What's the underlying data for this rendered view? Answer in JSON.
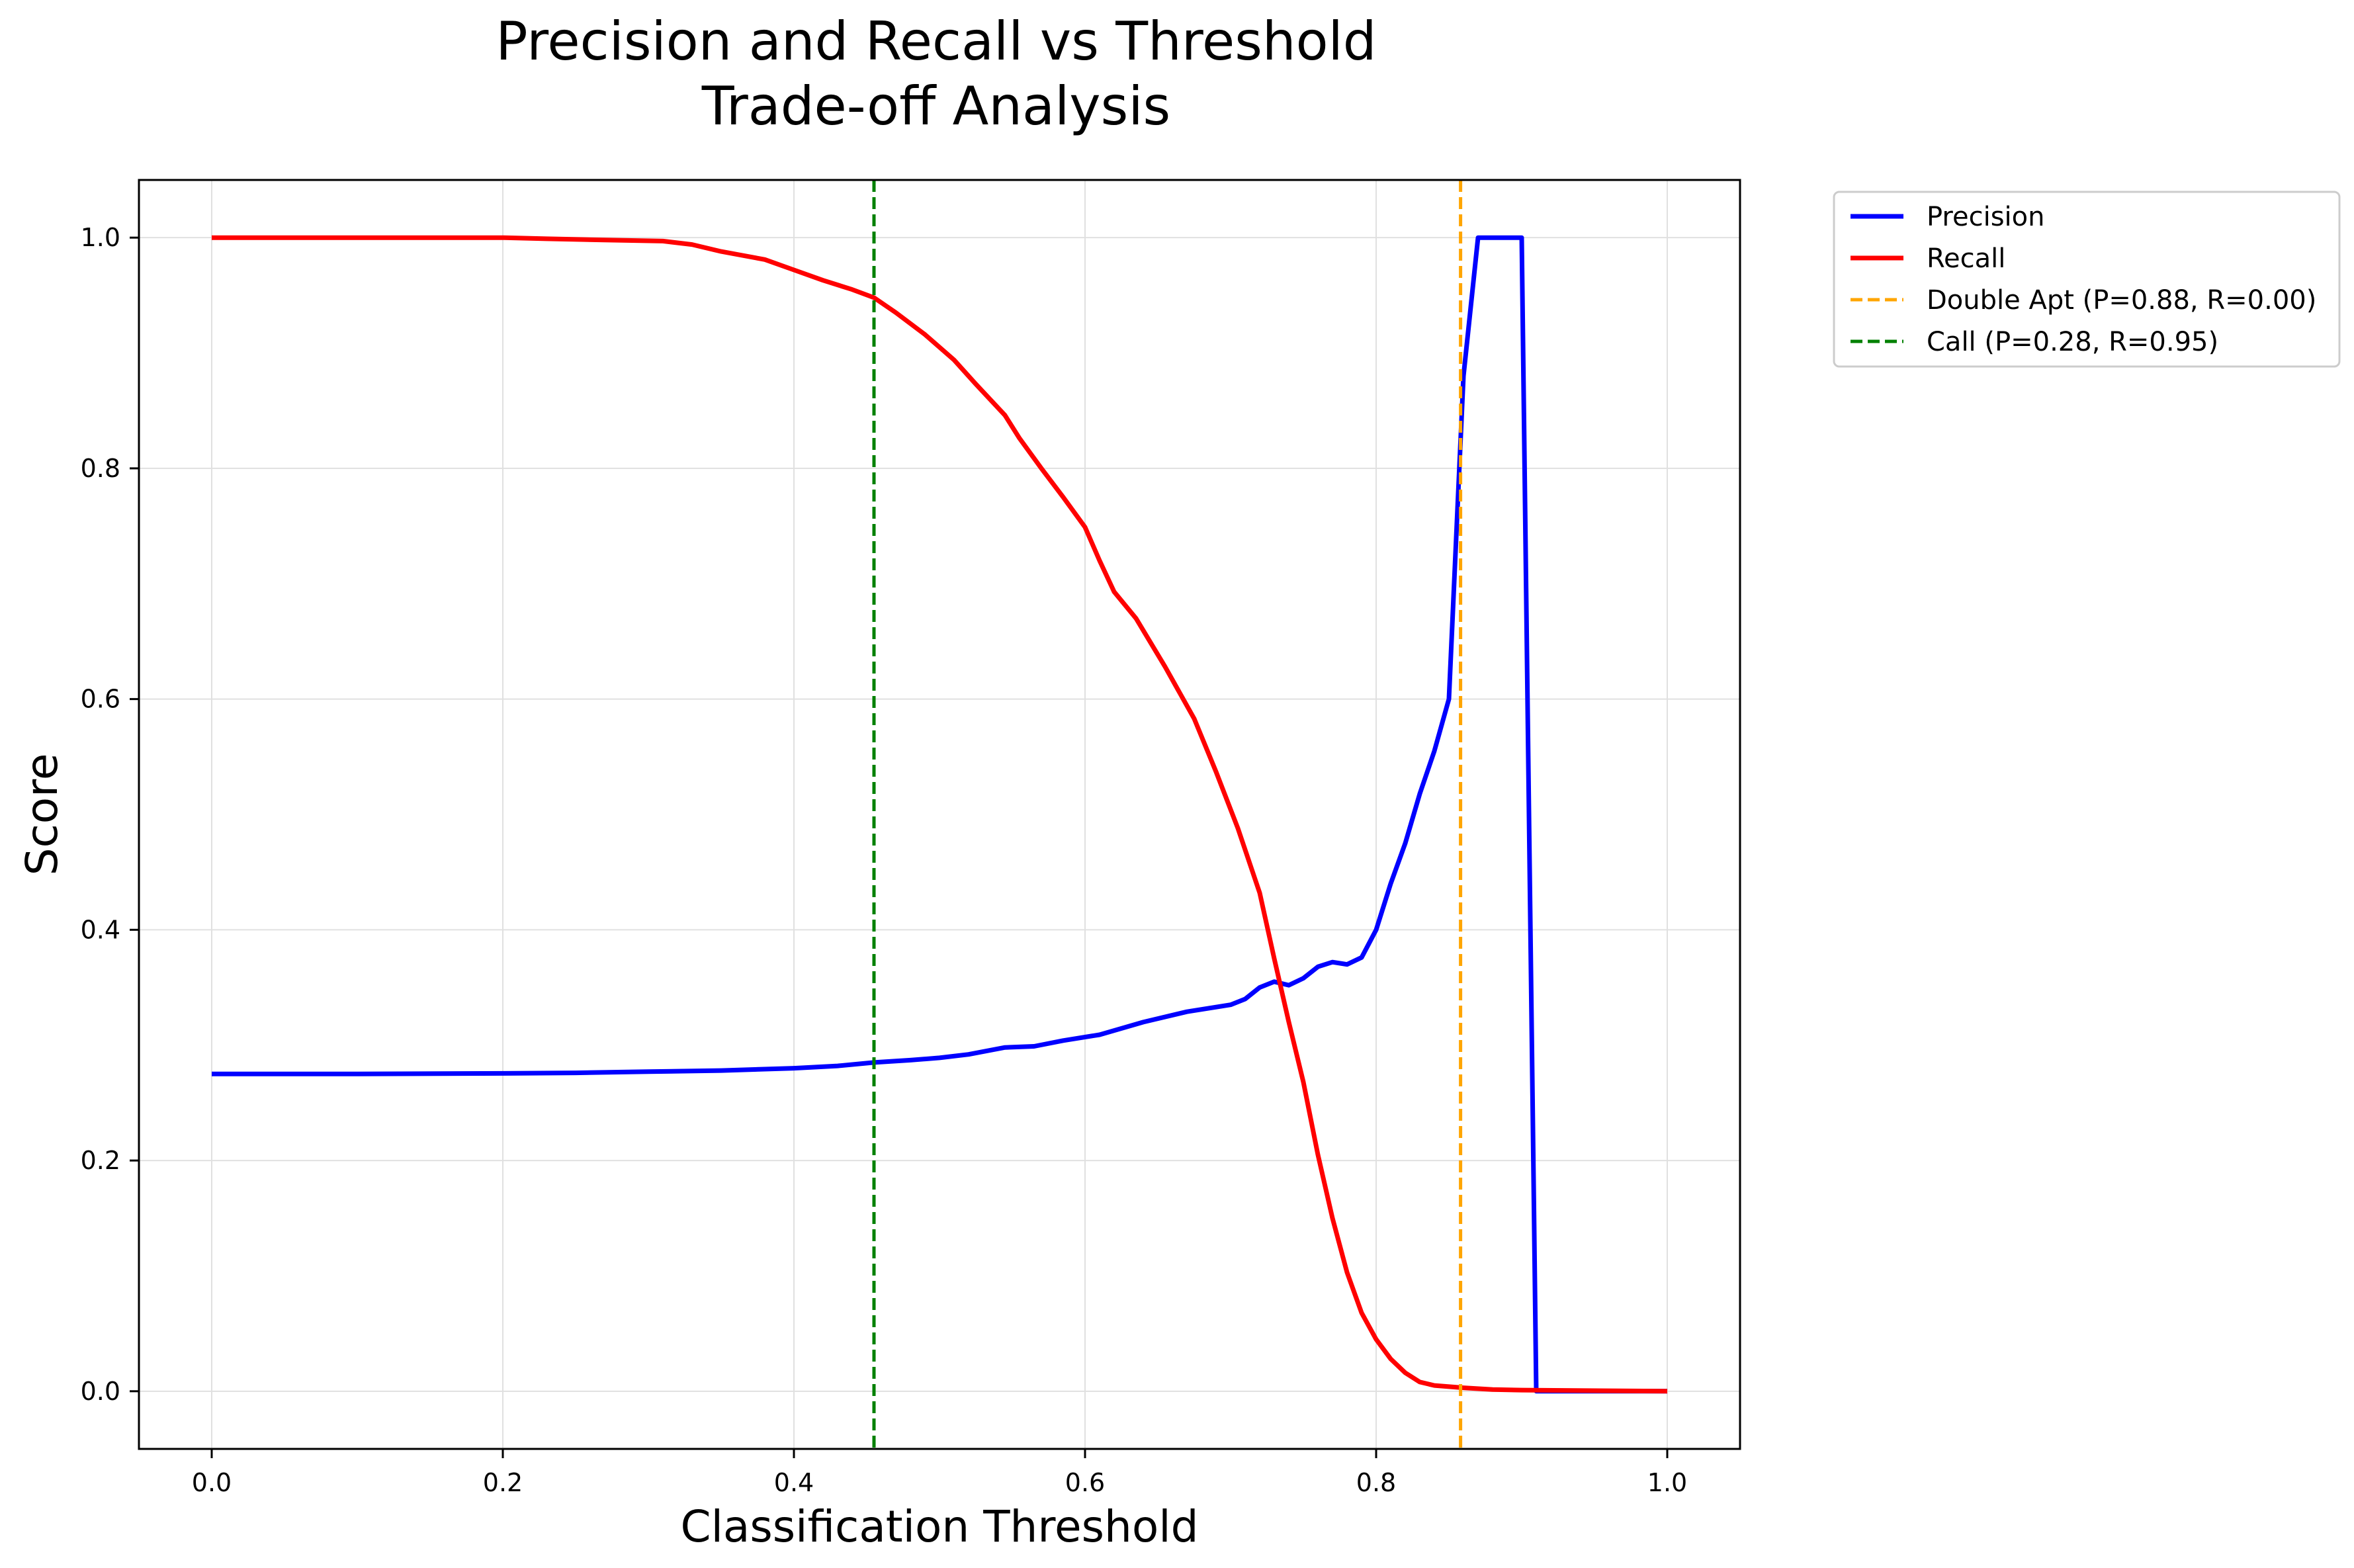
{
  "chart_data": {
    "type": "line",
    "title": [
      "Precision and Recall vs Threshold",
      "Trade-off Analysis"
    ],
    "xlabel": "Classification Threshold",
    "ylabel": "Score",
    "xlim": [
      -0.05,
      1.05
    ],
    "ylim": [
      -0.05,
      1.05
    ],
    "grid": true,
    "legend_position": "outside-top-right",
    "x_ticks": [
      {
        "value": 0.0,
        "label": "0.0"
      },
      {
        "value": 0.2,
        "label": "0.2"
      },
      {
        "value": 0.4,
        "label": "0.4"
      },
      {
        "value": 0.6,
        "label": "0.6"
      },
      {
        "value": 0.8,
        "label": "0.8"
      },
      {
        "value": 1.0,
        "label": "1.0"
      }
    ],
    "y_ticks": [
      {
        "value": 0.0,
        "label": "0.0"
      },
      {
        "value": 0.2,
        "label": "0.2"
      },
      {
        "value": 0.4,
        "label": "0.4"
      },
      {
        "value": 0.6,
        "label": "0.6"
      },
      {
        "value": 0.8,
        "label": "0.8"
      },
      {
        "value": 1.0,
        "label": "1.0"
      }
    ],
    "series": [
      {
        "name": "Precision",
        "color": "#0000ff",
        "style": "solid",
        "points": [
          [
            0.0,
            0.275
          ],
          [
            0.1,
            0.275
          ],
          [
            0.2,
            0.2755
          ],
          [
            0.25,
            0.276
          ],
          [
            0.3,
            0.277
          ],
          [
            0.35,
            0.278
          ],
          [
            0.4,
            0.28
          ],
          [
            0.43,
            0.282
          ],
          [
            0.455,
            0.285
          ],
          [
            0.48,
            0.287
          ],
          [
            0.5,
            0.289
          ],
          [
            0.52,
            0.292
          ],
          [
            0.545,
            0.298
          ],
          [
            0.565,
            0.299
          ],
          [
            0.585,
            0.304
          ],
          [
            0.61,
            0.309
          ],
          [
            0.64,
            0.32
          ],
          [
            0.67,
            0.329
          ],
          [
            0.7,
            0.335
          ],
          [
            0.71,
            0.34
          ],
          [
            0.72,
            0.35
          ],
          [
            0.73,
            0.355
          ],
          [
            0.74,
            0.352
          ],
          [
            0.75,
            0.358
          ],
          [
            0.76,
            0.368
          ],
          [
            0.77,
            0.372
          ],
          [
            0.78,
            0.37
          ],
          [
            0.79,
            0.376
          ],
          [
            0.8,
            0.4
          ],
          [
            0.81,
            0.44
          ],
          [
            0.82,
            0.475
          ],
          [
            0.83,
            0.518
          ],
          [
            0.84,
            0.555
          ],
          [
            0.85,
            0.6
          ],
          [
            0.86,
            0.88
          ],
          [
            0.87,
            1.0
          ],
          [
            0.88,
            1.0
          ],
          [
            0.89,
            1.0
          ],
          [
            0.9,
            1.0
          ],
          [
            0.91,
            0.0
          ],
          [
            0.95,
            0.0
          ],
          [
            1.0,
            0.0
          ]
        ]
      },
      {
        "name": "Recall",
        "color": "#ff0000",
        "style": "solid",
        "points": [
          [
            0.0,
            1.0
          ],
          [
            0.1,
            1.0
          ],
          [
            0.2,
            1.0
          ],
          [
            0.23,
            0.999
          ],
          [
            0.27,
            0.998
          ],
          [
            0.31,
            0.997
          ],
          [
            0.33,
            0.994
          ],
          [
            0.35,
            0.988
          ],
          [
            0.38,
            0.981
          ],
          [
            0.4,
            0.972
          ],
          [
            0.42,
            0.963
          ],
          [
            0.44,
            0.955
          ],
          [
            0.455,
            0.948
          ],
          [
            0.47,
            0.935
          ],
          [
            0.49,
            0.916
          ],
          [
            0.51,
            0.894
          ],
          [
            0.525,
            0.873
          ],
          [
            0.545,
            0.846
          ],
          [
            0.555,
            0.826
          ],
          [
            0.57,
            0.8
          ],
          [
            0.585,
            0.775
          ],
          [
            0.6,
            0.749
          ],
          [
            0.61,
            0.72
          ],
          [
            0.62,
            0.693
          ],
          [
            0.635,
            0.67
          ],
          [
            0.655,
            0.628
          ],
          [
            0.675,
            0.583
          ],
          [
            0.69,
            0.537
          ],
          [
            0.705,
            0.488
          ],
          [
            0.72,
            0.432
          ],
          [
            0.73,
            0.375
          ],
          [
            0.74,
            0.32
          ],
          [
            0.75,
            0.268
          ],
          [
            0.76,
            0.205
          ],
          [
            0.77,
            0.15
          ],
          [
            0.78,
            0.103
          ],
          [
            0.79,
            0.068
          ],
          [
            0.8,
            0.045
          ],
          [
            0.81,
            0.028
          ],
          [
            0.82,
            0.016
          ],
          [
            0.83,
            0.008
          ],
          [
            0.84,
            0.005
          ],
          [
            0.86,
            0.003
          ],
          [
            0.88,
            0.0015
          ],
          [
            0.9,
            0.001
          ],
          [
            1.0,
            0.0
          ]
        ]
      }
    ],
    "vlines": [
      {
        "name": "Double Apt (P=0.88, R=0.00)",
        "x": 0.858,
        "color": "#ffa500",
        "style": "dashed"
      },
      {
        "name": "Call (P=0.28, R=0.95)",
        "x": 0.455,
        "color": "#008000",
        "style": "dashed"
      }
    ]
  }
}
